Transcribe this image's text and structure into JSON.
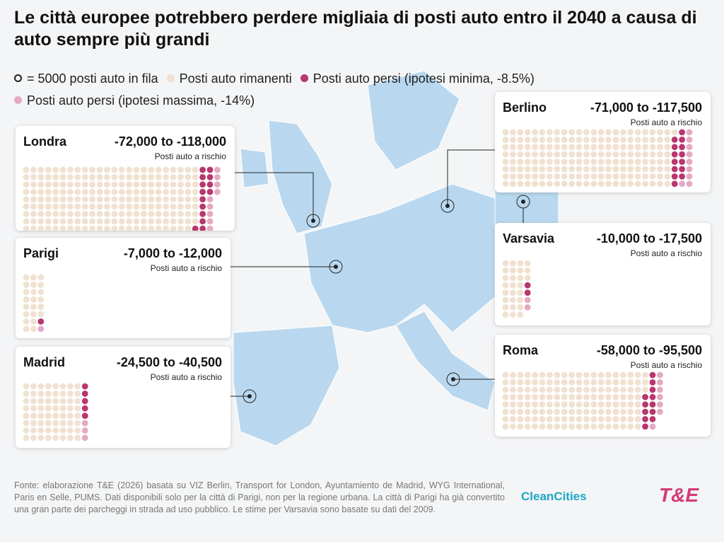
{
  "chart_data": {
    "type": "dot-grid",
    "title": "Le città europee potrebbero perdere migliaia di posti auto entro il 2040 a causa di auto sempre più grandi",
    "legend": [
      {
        "label": "= 5000 posti auto in fila",
        "color": null
      },
      {
        "label": "Posti auto rimanenti",
        "color": "#f0e1d0"
      },
      {
        "label": "Posti auto persi (ipotesi minima, -8.5%)",
        "color": "#b8376f"
      },
      {
        "label": "Posti auto persi (ipotesi massima, -14%)",
        "color": "#e4a9c3"
      }
    ],
    "series_keys": [
      "remaining",
      "lost_min",
      "lost_max"
    ],
    "cities": [
      {
        "name": "Londra",
        "range": "-72,000 to -118,000",
        "subtitle": "Posti auto a rischio",
        "rows": 9,
        "remaining": 215,
        "lost_min": 14,
        "lost_max": 9
      },
      {
        "name": "Parigi",
        "range": "-7,000 to -12,000",
        "subtitle": "Posti auto a rischio",
        "rows": 8,
        "remaining": 22,
        "lost_min": 1,
        "lost_max": 1
      },
      {
        "name": "Madrid",
        "range": "-24,500 to -40,500",
        "subtitle": "Posti auto a rischio",
        "rows": 8,
        "remaining": 64,
        "lost_min": 5,
        "lost_max": 3
      },
      {
        "name": "Berlino",
        "range": "-71,000 to -117,500",
        "subtitle": "Posti auto a rischio",
        "rows": 8,
        "remaining": 185,
        "lost_min": 14,
        "lost_max": 9
      },
      {
        "name": "Varsavia",
        "range": "-10,000 to -17,500",
        "subtitle": "Posti auto a rischio",
        "rows": 8,
        "remaining": 27,
        "lost_min": 2,
        "lost_max": 2
      },
      {
        "name": "Roma",
        "range": "-58,000 to -95,500",
        "subtitle": "Posti auto a rischio",
        "rows": 8,
        "remaining": 155,
        "lost_min": 12,
        "lost_max": 7
      }
    ],
    "source": "Fonte: elaborazione T&E (2026) basata su VIZ Berlin, Transport for London, Ayuntamiento de Madrid, WYG International, Paris en Selle, PUMS. Dati disponibili solo per la città di Parigi, non per la regione urbana. La città di Parigi ha già convertito una gran parte dei parcheggi in strada ad uso pubblico. Le stime per Varsavia sono basate su dati del 2009.",
    "logos": [
      "CleanCities",
      "T&E"
    ]
  }
}
